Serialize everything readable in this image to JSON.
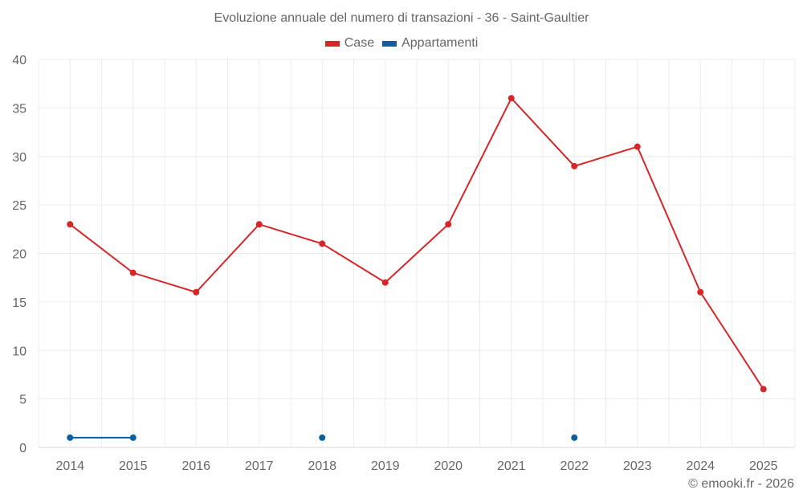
{
  "chart_data": {
    "type": "line",
    "title": "Evoluzione annuale del numero di transazioni - 36 - Saint-Gaultier",
    "xlabel": "",
    "ylabel": "",
    "categories": [
      "2014",
      "2015",
      "2016",
      "2017",
      "2018",
      "2019",
      "2020",
      "2021",
      "2022",
      "2023",
      "2024",
      "2025"
    ],
    "ylim": [
      0,
      40
    ],
    "yticks": [
      0,
      5,
      10,
      15,
      20,
      25,
      30,
      35,
      40
    ],
    "grid": true,
    "legend_position": "top",
    "series": [
      {
        "name": "Case",
        "color": "#d62728",
        "values": [
          23,
          18,
          16,
          23,
          21,
          17,
          23,
          36,
          29,
          31,
          16,
          6
        ]
      },
      {
        "name": "Appartamenti",
        "color": "#08619e",
        "values": [
          1,
          1,
          null,
          null,
          1,
          null,
          null,
          null,
          1,
          null,
          null,
          null
        ]
      }
    ]
  },
  "credit": "© emooki.fr - 2026"
}
